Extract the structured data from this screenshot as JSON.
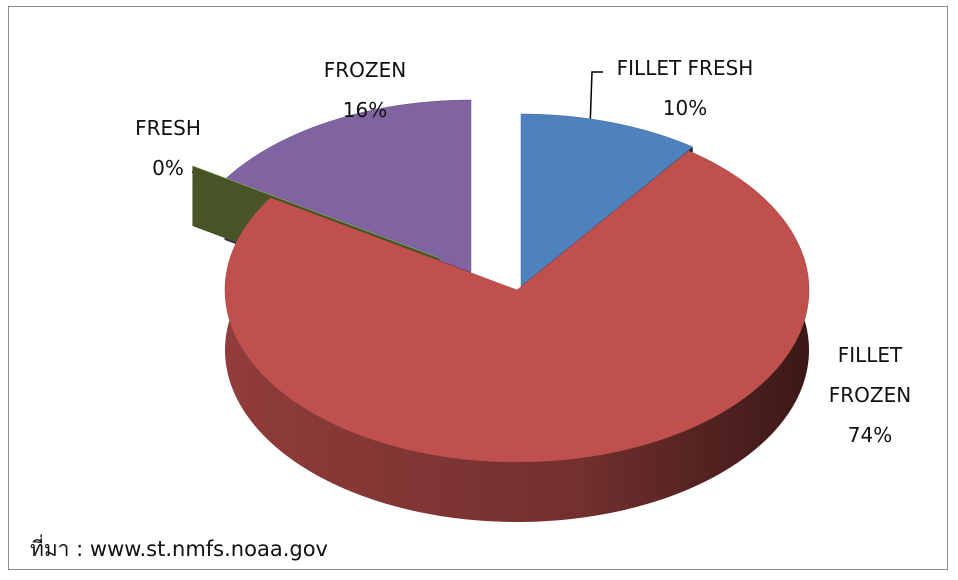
{
  "chart_data": {
    "type": "pie",
    "categories": [
      "FILLET FRESH",
      "FILLET FROZEN",
      "FRESH",
      "FROZEN"
    ],
    "values": [
      10,
      74,
      0,
      16
    ],
    "value_labels": [
      "10%",
      "74%",
      "0%",
      "16%"
    ],
    "colors": [
      "#4f81bd",
      "#c0504d",
      "#9bbb59",
      "#8064a2"
    ],
    "annotation": "ที่มา : www.st.nmfs.noaa.gov"
  }
}
